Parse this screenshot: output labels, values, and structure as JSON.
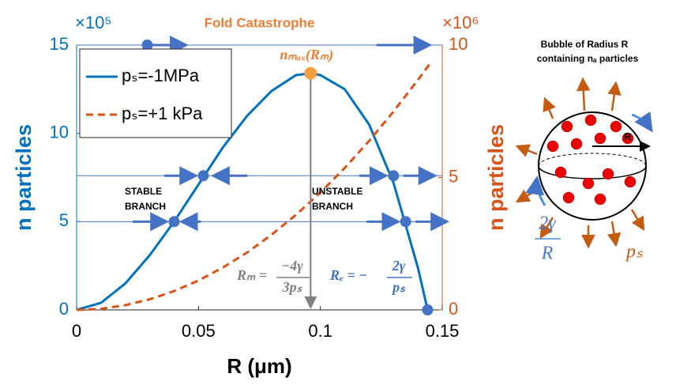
{
  "chart_data": {
    "type": "line",
    "title": "Fold Catastrophe",
    "xlabel": "R (μm)",
    "ylabel": "n particles",
    "y2label": "n particles",
    "y_exponent": "×10⁵",
    "y2_exponent": "×10⁶",
    "xlim": [
      0,
      0.15
    ],
    "xticks": [
      0,
      0.05,
      0.1,
      0.15
    ],
    "ylim": [
      0,
      15
    ],
    "yticks": [
      0,
      5,
      10,
      15
    ],
    "y2lim": [
      0,
      10
    ],
    "y2ticks": [
      0,
      5,
      10
    ],
    "legend": "upper left",
    "series": [
      {
        "name": "pₛ=-1MPa",
        "color": "#0072bd",
        "dash": false,
        "x": [
          0,
          0.01,
          0.02,
          0.03,
          0.04,
          0.05,
          0.06,
          0.07,
          0.08,
          0.09,
          0.096,
          0.1,
          0.11,
          0.12,
          0.13,
          0.14,
          0.144
        ],
        "values": [
          0,
          0.4,
          1.5,
          3.1,
          5.0,
          7.1,
          9.2,
          11.0,
          12.4,
          13.3,
          13.4,
          13.3,
          12.5,
          10.5,
          7.2,
          2.4,
          0
        ]
      },
      {
        "name": "pₛ=+1 kPa",
        "color": "#d95319",
        "dash": true,
        "axis": "y2",
        "x": [
          0,
          0.01,
          0.02,
          0.03,
          0.04,
          0.05,
          0.06,
          0.07,
          0.08,
          0.09,
          0.1,
          0.11,
          0.12,
          0.13,
          0.14,
          0.145
        ],
        "values": [
          0,
          0.04,
          0.18,
          0.4,
          0.71,
          1.11,
          1.6,
          2.17,
          2.84,
          3.59,
          4.43,
          5.36,
          6.38,
          7.49,
          8.68,
          9.3
        ]
      }
    ],
    "markers": {
      "x": [
        0.04,
        0.052,
        0.13,
        0.135,
        0.144
      ],
      "values": [
        5,
        7.6,
        7.6,
        5,
        0
      ],
      "color": "#4472c4"
    },
    "max_marker": {
      "x": 0.096,
      "value": 13.4,
      "color": "#f4a040",
      "label": "nₘₐₓ(Rₘ)"
    },
    "annotations": {
      "stable": [
        "STABLE",
        "BRANCH"
      ],
      "unstable": [
        "UNSTABLE",
        "BRANCH"
      ],
      "rm": [
        "Rₘ =",
        "−4γ",
        "3pₛ"
      ],
      "re": [
        "Rₑ = −",
        "2γ",
        "pₛ"
      ]
    }
  },
  "diagram": {
    "title": [
      "Bubble of Radius R",
      "containing nₐ particles"
    ],
    "radius": "R",
    "tension": [
      "2γ",
      "R"
    ],
    "pressure": "pₛ"
  }
}
